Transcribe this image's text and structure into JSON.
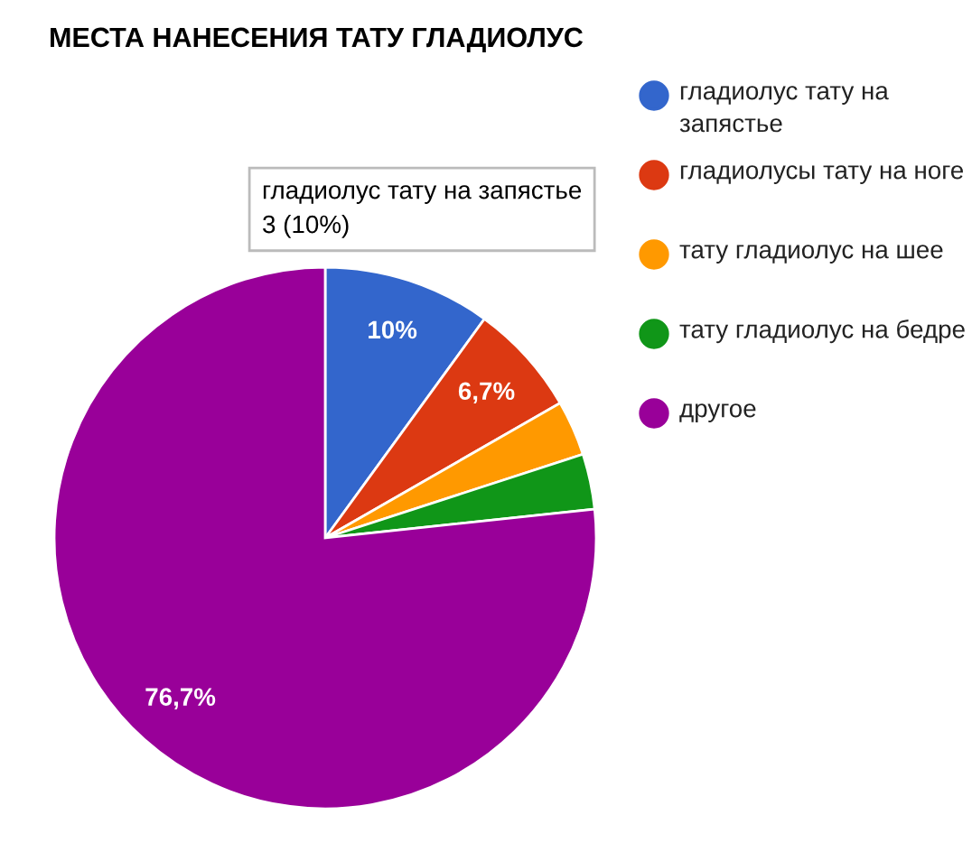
{
  "chart_data": {
    "type": "pie",
    "title": "МЕСТА НАНЕСЕНИЯ ТАТУ ГЛАДИОЛУС",
    "categories": [
      "гладиолус тату на запястье",
      "гладиолусы тату на ноге",
      "тату гладиолус на шее",
      "тату гладиолус на бедре",
      "другое"
    ],
    "values": [
      10,
      6.7,
      3.3,
      3.3,
      76.7
    ],
    "colors": [
      "#3366cc",
      "#dc3912",
      "#ff9900",
      "#109618",
      "#990099"
    ],
    "value_labels": [
      "10%",
      "6,7%",
      null,
      null,
      "76,7%"
    ],
    "annotations": [
      "гладиолус тату на запястье\n3 (10%)"
    ],
    "legend": "right"
  }
}
